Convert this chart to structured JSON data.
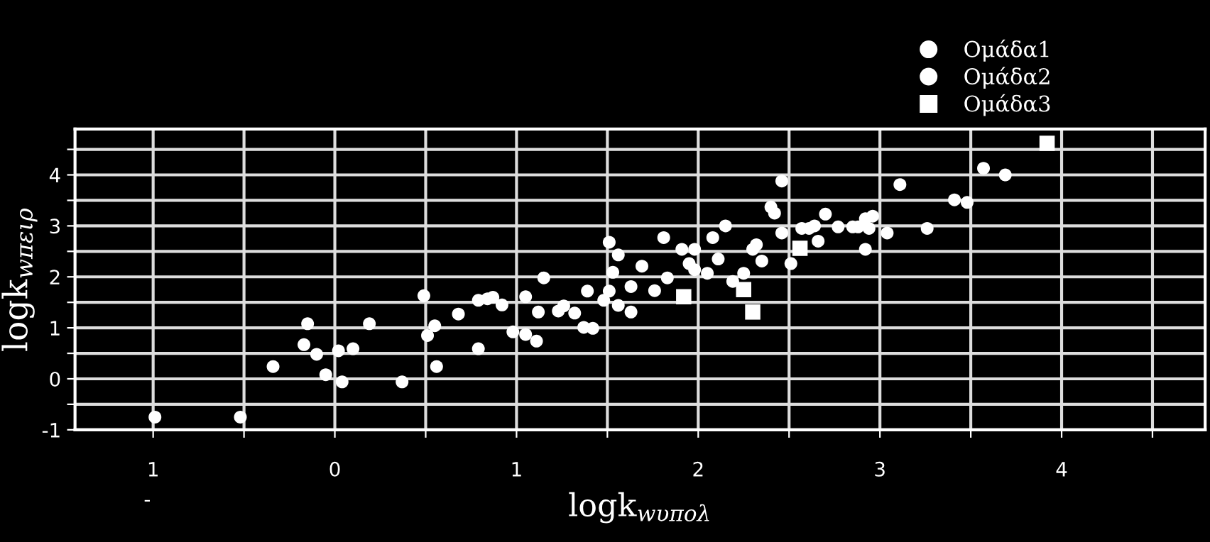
{
  "chart_data": {
    "type": "scatter",
    "xlabel": "logk$_{wυπολ}$",
    "ylabel": "logk$_{wπειρ}$",
    "xlim": [
      -1.43,
      4.79
    ],
    "ylim": [
      -1,
      4.9
    ],
    "xticks": [
      {
        "value": -1,
        "label": "1"
      },
      {
        "value": -0.5,
        "label": null
      },
      0,
      {
        "value": 0.5,
        "label": null
      },
      1,
      {
        "value": 1.5,
        "label": null
      },
      2,
      {
        "value": 2.5,
        "label": null
      },
      3,
      {
        "value": 3.5,
        "label": null
      },
      4,
      {
        "value": 4.5,
        "label": null
      }
    ],
    "yticks": [
      -1,
      {
        "value": -0.5,
        "label": null
      },
      0,
      {
        "value": 0.5,
        "label": null
      },
      1,
      {
        "value": 1.5,
        "label": null
      },
      2,
      {
        "value": 2.5,
        "label": null
      },
      3,
      {
        "value": 3.5,
        "label": null
      },
      4,
      {
        "value": 4.5,
        "label": null
      }
    ],
    "grid": true,
    "legend": "top right",
    "annotations": [
      "-"
    ],
    "series": [
      {
        "name": "Ομάδα1",
        "color": "#ffffff",
        "marker": "circle",
        "x": [
          -0.99,
          -0.52,
          -0.34,
          -0.15,
          -0.17,
          -0.1,
          -0.05,
          0.02,
          0.04,
          0.1,
          0.19,
          0.37,
          0.49,
          0.51,
          0.55,
          0.56,
          0.68,
          0.79,
          0.79,
          0.84,
          0.87,
          0.92,
          0.98,
          1.05,
          1.05,
          1.11,
          1.12,
          1.15,
          1.23,
          1.26,
          1.32,
          1.37,
          1.42,
          1.39,
          1.48,
          1.51,
          1.56,
          1.53,
          1.51,
          1.56,
          1.63,
          1.63,
          1.69,
          1.81,
          1.83,
          1.76,
          1.91,
          1.98,
          1.95,
          1.98,
          2.05,
          2.08,
          2.11,
          2.15,
          2.19,
          2.25,
          2.3,
          2.32,
          2.35,
          2.4,
          2.42,
          2.46,
          2.46,
          2.51,
          2.57,
          2.61,
          2.64,
          2.66,
          2.7,
          2.77,
          2.85,
          2.88,
          2.92,
          2.94,
          2.96,
          2.92,
          3.04,
          3.11,
          3.26,
          3.41,
          3.48,
          3.57,
          3.69
        ],
        "values": [
          -0.75,
          -0.75,
          0.24,
          1.08,
          0.67,
          0.48,
          0.08,
          0.55,
          -0.06,
          0.59,
          1.08,
          -0.06,
          1.63,
          0.85,
          1.04,
          0.24,
          1.27,
          0.59,
          1.54,
          1.57,
          1.6,
          1.45,
          0.92,
          0.87,
          1.61,
          0.74,
          1.31,
          1.98,
          1.33,
          1.43,
          1.29,
          1.01,
          0.99,
          1.72,
          1.54,
          2.68,
          2.43,
          2.09,
          1.72,
          1.44,
          1.81,
          1.31,
          2.21,
          2.77,
          1.98,
          1.73,
          2.54,
          2.54,
          2.26,
          2.14,
          2.07,
          2.77,
          2.35,
          3.0,
          1.91,
          2.07,
          2.54,
          2.63,
          2.31,
          3.37,
          3.25,
          3.88,
          2.86,
          2.26,
          2.95,
          2.95,
          3.0,
          2.7,
          3.23,
          2.98,
          2.98,
          2.98,
          3.14,
          2.95,
          3.19,
          2.54,
          2.86,
          3.81,
          2.95,
          3.51,
          3.46,
          4.13,
          4.0
        ]
      },
      {
        "name": "Ομάδα2",
        "color": "#ffffff",
        "marker": "circle"
      },
      {
        "name": "Ομάδα3",
        "color": "#ffffff",
        "marker": "square",
        "x": [
          1.92,
          2.25,
          2.3,
          2.56,
          3.92
        ],
        "values": [
          1.61,
          1.75,
          1.31,
          2.56,
          4.62
        ]
      }
    ]
  }
}
